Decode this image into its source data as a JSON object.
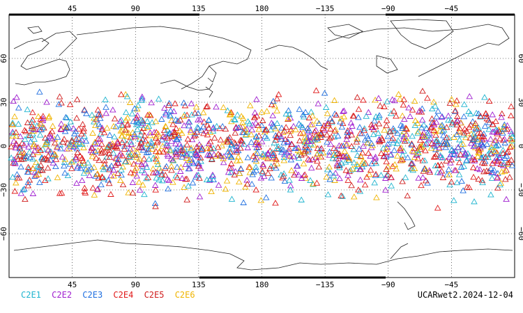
{
  "map": {
    "projection": "cylindrical equidistant",
    "lon_range": [
      0,
      360
    ],
    "lat_range": [
      -90,
      90
    ],
    "lon_ticks": [
      45,
      90,
      135,
      180,
      -135,
      -90,
      -45
    ],
    "lat_ticks": [
      60,
      30,
      0,
      -30,
      -60
    ],
    "grid": "dotted",
    "marker": "triangle",
    "observation_band_lat": [
      -45,
      45
    ]
  },
  "legend": {
    "entries": [
      {
        "label": "C2E1",
        "color": "#1fb4cf"
      },
      {
        "label": "C2E2",
        "color": "#a020d0"
      },
      {
        "label": "C2E3",
        "color": "#1f6fe0"
      },
      {
        "label": "C2E4",
        "color": "#e01919"
      },
      {
        "label": "C2E5",
        "color": "#d01c1c"
      },
      {
        "label": "C2E6",
        "color": "#f0b400"
      }
    ]
  },
  "footer": {
    "label": "UCARwet2.2024-12-04"
  }
}
